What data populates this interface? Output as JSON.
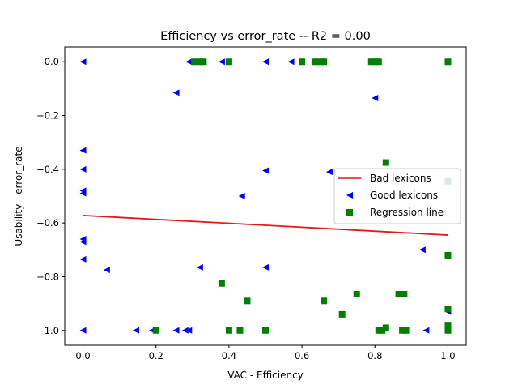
{
  "chart_data": {
    "type": "scatter",
    "title": "Efficiency  vs  error_rate -- R2 = 0.00",
    "xlabel": "VAC - Efficiency",
    "ylabel": "Usability - error_rate",
    "xlim": [
      -0.05,
      1.05
    ],
    "ylim": [
      -1.055,
      0.055
    ],
    "xticks": [
      0.0,
      0.2,
      0.4,
      0.6,
      0.8,
      1.0
    ],
    "xtick_labels": [
      "0.0",
      "0.2",
      "0.4",
      "0.6",
      "0.8",
      "1.0"
    ],
    "yticks": [
      0.0,
      -0.2,
      -0.4,
      -0.6,
      -0.8,
      -1.0
    ],
    "ytick_labels": [
      "0.0",
      "−0.2",
      "−0.4",
      "−0.6",
      "−0.8",
      "−1.0"
    ],
    "grid": false,
    "legend_position": "center-right",
    "legend": [
      {
        "label": "Bad lexicons",
        "marker": "line",
        "color": "#e31a1c"
      },
      {
        "label": "Good lexicons",
        "marker": "triangle-left",
        "color": "#0000ff"
      },
      {
        "label": "Regression line",
        "marker": "square",
        "color": "#008000"
      }
    ],
    "regression_line": {
      "x": [
        0.0,
        1.0
      ],
      "y": [
        -0.572,
        -0.645
      ],
      "color": "#e31a1c"
    },
    "good_lexicons": {
      "color": "#0000ff",
      "points": [
        [
          0.0,
          0.0
        ],
        [
          0.0,
          -0.33
        ],
        [
          0.0,
          -0.4
        ],
        [
          0.0,
          -0.48
        ],
        [
          0.0,
          -0.49
        ],
        [
          0.0,
          -0.66
        ],
        [
          0.0,
          -0.67
        ],
        [
          0.0,
          -0.735
        ],
        [
          0.0,
          -1.0
        ],
        [
          0.065,
          -0.775
        ],
        [
          0.145,
          -1.0
        ],
        [
          0.19,
          -1.0
        ],
        [
          0.255,
          -1.0
        ],
        [
          0.255,
          -0.115
        ],
        [
          0.28,
          -1.0
        ],
        [
          0.29,
          -1.0
        ],
        [
          0.29,
          0.0
        ],
        [
          0.32,
          -0.765
        ],
        [
          0.38,
          0.0
        ],
        [
          0.435,
          -0.5
        ],
        [
          0.5,
          0.0
        ],
        [
          0.5,
          -0.405
        ],
        [
          0.5,
          -0.765
        ],
        [
          0.57,
          0.0
        ],
        [
          0.675,
          -0.41
        ],
        [
          0.8,
          -0.135
        ],
        [
          0.93,
          -0.7
        ],
        [
          0.94,
          -1.0
        ],
        [
          1.0,
          -0.93
        ],
        [
          1.0,
          -1.0
        ]
      ]
    },
    "bad_lexicons": {
      "color": "#008000",
      "points": [
        [
          0.2,
          -1.0
        ],
        [
          0.305,
          0.0
        ],
        [
          0.32,
          0.0
        ],
        [
          0.33,
          0.0
        ],
        [
          0.38,
          -0.825
        ],
        [
          0.4,
          0.0
        ],
        [
          0.4,
          -1.0
        ],
        [
          0.43,
          -1.0
        ],
        [
          0.45,
          -0.89
        ],
        [
          0.5,
          -1.0
        ],
        [
          0.6,
          0.0
        ],
        [
          0.635,
          0.0
        ],
        [
          0.65,
          0.0
        ],
        [
          0.66,
          0.0
        ],
        [
          0.66,
          -0.89
        ],
        [
          0.71,
          -0.94
        ],
        [
          0.75,
          -0.865
        ],
        [
          0.79,
          0.0
        ],
        [
          0.8,
          0.0
        ],
        [
          0.81,
          0.0
        ],
        [
          0.81,
          -1.0
        ],
        [
          0.82,
          -1.0
        ],
        [
          0.83,
          -0.375
        ],
        [
          0.83,
          -0.99
        ],
        [
          0.865,
          -0.865
        ],
        [
          0.875,
          -1.0
        ],
        [
          0.88,
          -0.865
        ],
        [
          0.885,
          -1.0
        ],
        [
          1.0,
          0.0
        ],
        [
          1.0,
          -0.445
        ],
        [
          1.0,
          -0.72
        ],
        [
          1.0,
          -0.92
        ],
        [
          1.0,
          -0.98
        ],
        [
          1.0,
          -1.0
        ]
      ]
    }
  }
}
